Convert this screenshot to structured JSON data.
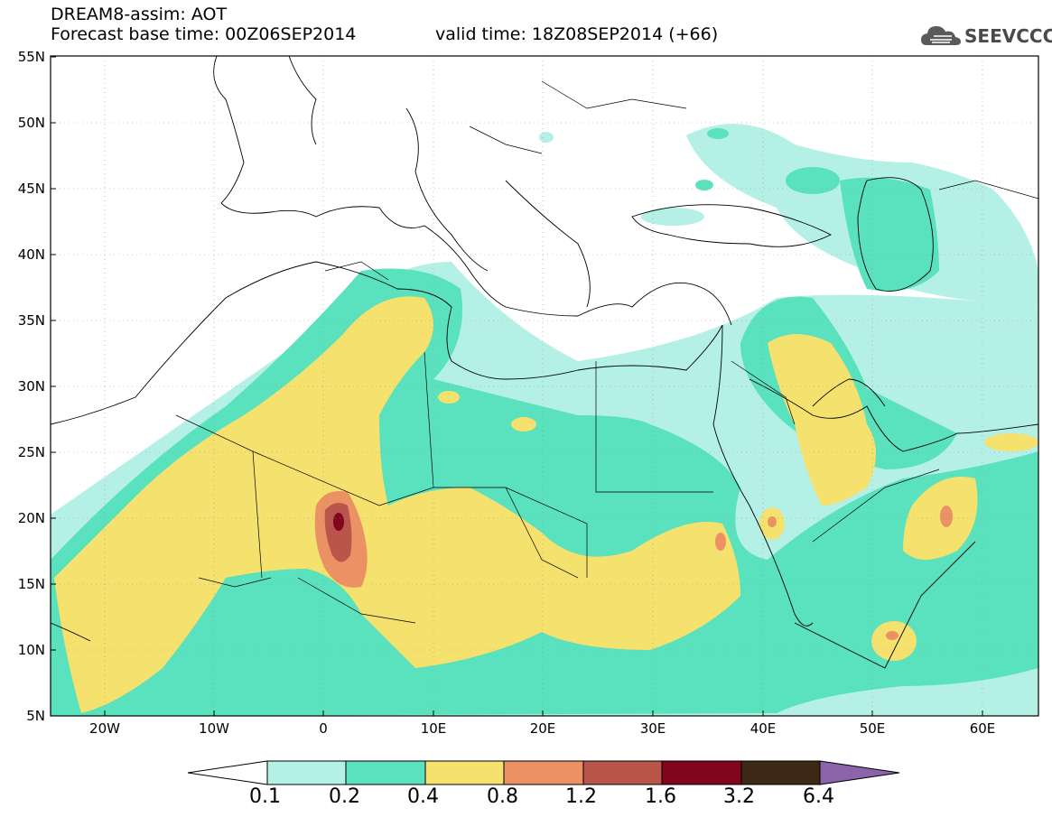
{
  "header": {
    "title": "DREAM8-assim: AOT",
    "base_time": "Forecast base time: 00Z06SEP2014",
    "valid_time": "valid time: 18Z08SEP2014 (+66)"
  },
  "logo": {
    "text": "SEEVCCC",
    "icon": "cloud-icon"
  },
  "map": {
    "lat_labels": [
      "55N",
      "50N",
      "45N",
      "40N",
      "35N",
      "30N",
      "25N",
      "20N",
      "15N",
      "10N",
      "5N"
    ],
    "lon_labels": [
      "20W",
      "10W",
      "0",
      "10E",
      "20E",
      "30E",
      "40E",
      "50E",
      "60E"
    ]
  },
  "colorbar": {
    "labels": [
      "0.1",
      "0.2",
      "0.4",
      "0.8",
      "1.2",
      "1.6",
      "3.2",
      "6.4"
    ],
    "colors": [
      "#ffffff",
      "#b4f0e6",
      "#5ae1be",
      "#f5e16e",
      "#ec9164",
      "#b9554b",
      "#82051e",
      "#3c2814",
      "#8c64aa"
    ]
  },
  "colors": {
    "lvl1": "#b4f0e6",
    "lvl2": "#5ae1be",
    "lvl3": "#f5e16e",
    "lvl4": "#ec9164",
    "lvl5": "#b9554b",
    "lvl6": "#82051e"
  }
}
